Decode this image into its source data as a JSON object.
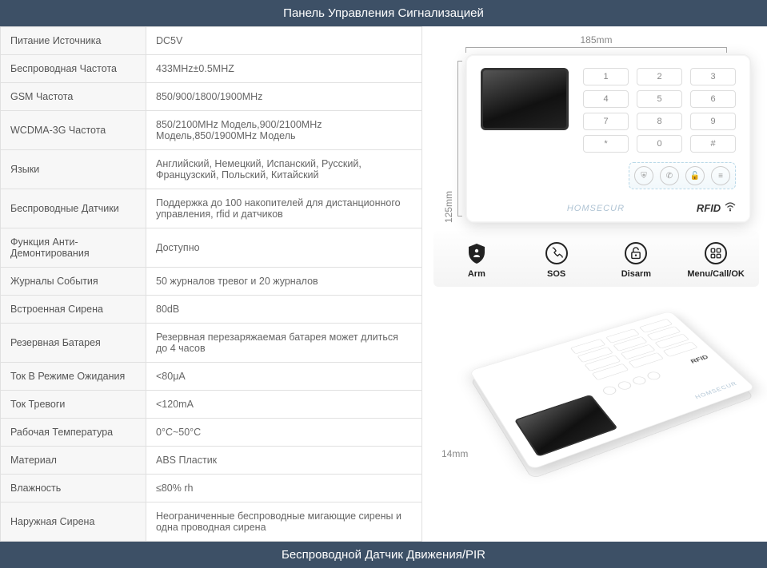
{
  "header1": "Панель Управления Сигнализацией",
  "header2": "Беспроводной Датчик Движения/PIR",
  "specs": [
    {
      "k": "Питание Источника",
      "v": "DC5V"
    },
    {
      "k": "Беспроводная Частота",
      "v": "433MHz±0.5MHZ"
    },
    {
      "k": "GSM Частота",
      "v": "850/900/1800/1900MHz"
    },
    {
      "k": "WCDMA-3G Частота",
      "v": "850/2100MHz Модель,900/2100MHz Модель,850/1900MHz Модель"
    },
    {
      "k": "Языки",
      "v": "Английский, Немецкий, Испанский, Русский, Французский, Польский, Китайский"
    },
    {
      "k": "Беспроводные Датчики",
      "v": "Поддержка до 100 накопителей для дистанционного управления, rfid и датчиков"
    },
    {
      "k": "Функция Анти-Демонтирования",
      "v": "Доступно"
    },
    {
      "k": "Журналы События",
      "v": "50 журналов тревог и 20 журналов"
    },
    {
      "k": "Встроенная Сирена",
      "v": "80dB"
    },
    {
      "k": "Резервная Батарея",
      "v": "Резервная перезаряжаемая батарея может длиться до 4 часов"
    },
    {
      "k": "Ток В Режиме Ожидания",
      "v": "<80μA"
    },
    {
      "k": "Ток Тревоги",
      "v": "<120mA"
    },
    {
      "k": "Рабочая Температура",
      "v": "0°C~50°C"
    },
    {
      "k": "Материал",
      "v": "ABS Пластик"
    },
    {
      "k": "Влажность",
      "v": "≤80% rh"
    },
    {
      "k": "Наружная Сирена",
      "v": "Неограниченные беспроводные мигающие сирены и одна проводная сирена"
    }
  ],
  "dims": {
    "width": "185mm",
    "height": "125mm",
    "depth": "14mm"
  },
  "keypad": [
    "1",
    "2",
    "3",
    "4",
    "5",
    "6",
    "7",
    "8",
    "9",
    "*",
    "0",
    "#"
  ],
  "brand": "HOMSECUR",
  "rfid": "RFID",
  "features": [
    {
      "label": "Arm",
      "icon": "shield"
    },
    {
      "label": "SOS",
      "icon": "sos"
    },
    {
      "label": "Disarm",
      "icon": "disarm"
    },
    {
      "label": "Menu/Call/OK",
      "icon": "menu"
    }
  ],
  "colors": {
    "header_bg": "#3d5066",
    "header_fg": "#ffffff",
    "border": "#e0e0e0",
    "row_alt": "#f7f7f7",
    "text": "#666666",
    "dim": "#888888"
  }
}
